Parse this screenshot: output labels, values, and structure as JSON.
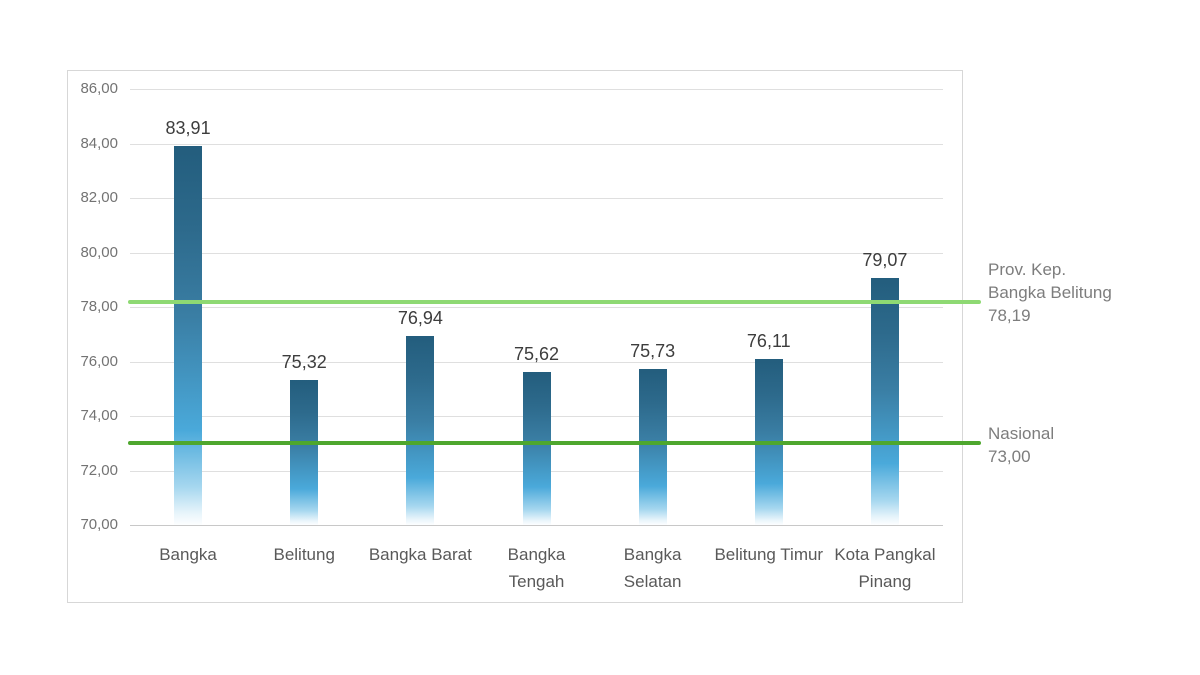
{
  "chart_data": {
    "type": "bar",
    "categories": [
      "Bangka",
      "Belitung",
      "Bangka Barat",
      "Bangka Tengah",
      "Bangka Selatan",
      "Belitung Timur",
      "Kota Pangkal Pinang"
    ],
    "values": [
      83.91,
      75.32,
      76.94,
      75.62,
      75.73,
      76.11,
      79.07
    ],
    "value_labels": [
      "83,91",
      "75,32",
      "76,94",
      "75,62",
      "75,73",
      "76,11",
      "79,07"
    ],
    "title": "",
    "xlabel": "",
    "ylabel": "",
    "ylim": [
      70,
      86
    ],
    "y_tick_step": 2,
    "y_tick_labels": [
      "86,00",
      "84,00",
      "82,00",
      "80,00",
      "78,00",
      "76,00",
      "74,00",
      "72,00",
      "70,00"
    ],
    "grid": true,
    "legend": "none",
    "bar_gradient": {
      "top": "#235d7d",
      "mid": "#4aa9da",
      "bottom": "#ffffff"
    },
    "reference_lines": [
      {
        "label": "Prov. Kep. Bangka Belitung",
        "value": 78.19,
        "value_label": "78,19",
        "color": "#8ed973",
        "label_lines": [
          "Prov. Kep.",
          "Bangka Belitung",
          "78,19"
        ]
      },
      {
        "label": "Nasional",
        "value": 73.0,
        "value_label": "73,00",
        "color": "#4ea72e",
        "label_lines": [
          "Nasional",
          "73,00"
        ]
      }
    ]
  }
}
